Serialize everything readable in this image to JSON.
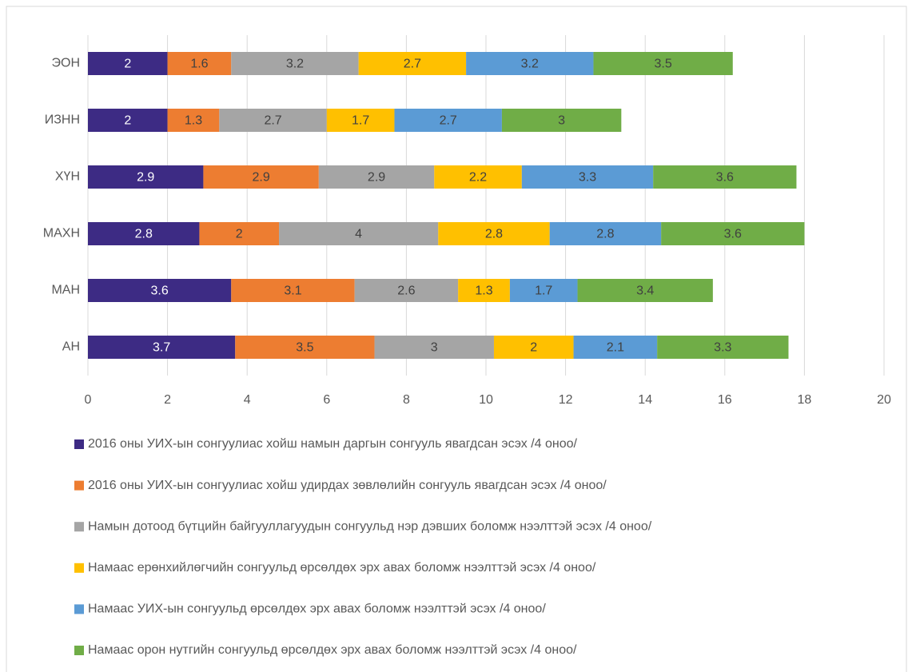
{
  "chart_data": {
    "type": "stacked-bar-horizontal",
    "categories": [
      "ЭОН",
      "ИЗНН",
      "ХҮН",
      "МАХН",
      "МАН",
      "АН"
    ],
    "series": [
      {
        "name": "2016 оны УИХ-ын сонгуулиас хойш намын даргын сонгууль явагдсан эсэх /4 оноо/",
        "color": "#3d2b84",
        "values": [
          2,
          2,
          2.9,
          2.8,
          3.6,
          3.7
        ]
      },
      {
        "name": "2016 оны УИХ-ын сонгуулиас хойш удирдах зөвлөлийн сонгууль явагдсан эсэх /4 оноо/",
        "color": "#ed7d31",
        "values": [
          1.6,
          1.3,
          2.9,
          2,
          3.1,
          3.5
        ]
      },
      {
        "name": "Намын дотоод бүтцийн байгууллагуудын сонгуульд нэр дэвших боломж нээлттэй эсэх /4 оноо/",
        "color": "#a5a5a5",
        "values": [
          3.2,
          2.7,
          2.9,
          4,
          2.6,
          3
        ]
      },
      {
        "name": "Намаас ерөнхийлөгчийн сонгуульд өрсөлдөх эрх авах боломж нээлттэй эсэх /4 оноо/",
        "color": "#ffc000",
        "values": [
          2.7,
          1.7,
          2.2,
          2.8,
          1.3,
          2
        ]
      },
      {
        "name": "Намаас УИХ-ын сонгуульд өрсөлдөх эрх авах боломж нээлттэй эсэх /4 оноо/",
        "color": "#5b9bd5",
        "values": [
          3.2,
          2.7,
          3.3,
          2.8,
          1.7,
          2.1
        ]
      },
      {
        "name": "Намаас орон нутгийн сонгуульд өрсөлдөх эрх авах боломж нээлттэй эсэх /4 оноо/",
        "color": "#70ad47",
        "values": [
          3.5,
          3,
          3.6,
          3.6,
          3.4,
          3.3
        ]
      }
    ],
    "xlim": [
      0,
      20
    ],
    "xticks": [
      0,
      2,
      4,
      6,
      8,
      10,
      12,
      14,
      16,
      18,
      20
    ],
    "grid": true,
    "legend": "bottom"
  }
}
